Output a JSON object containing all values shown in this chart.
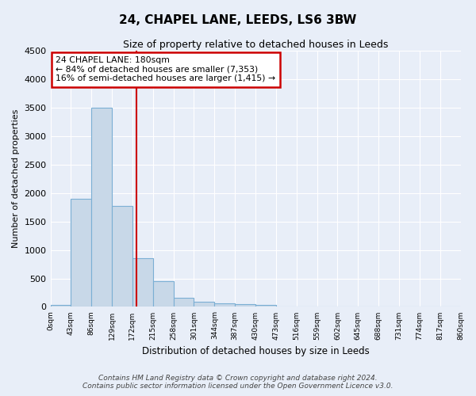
{
  "title": "24, CHAPEL LANE, LEEDS, LS6 3BW",
  "subtitle": "Size of property relative to detached houses in Leeds",
  "xlabel": "Distribution of detached houses by size in Leeds",
  "ylabel": "Number of detached properties",
  "footer_line1": "Contains HM Land Registry data © Crown copyright and database right 2024.",
  "footer_line2": "Contains public sector information licensed under the Open Government Licence v3.0.",
  "property_size": 180,
  "annotation_title": "24 CHAPEL LANE: 180sqm",
  "annotation_line1": "← 84% of detached houses are smaller (7,353)",
  "annotation_line2": "16% of semi-detached houses are larger (1,415) →",
  "bin_labels": [
    "0sqm",
    "43sqm",
    "86sqm",
    "129sqm",
    "172sqm",
    "215sqm",
    "258sqm",
    "301sqm",
    "344sqm",
    "387sqm",
    "430sqm",
    "473sqm",
    "516sqm",
    "559sqm",
    "602sqm",
    "645sqm",
    "688sqm",
    "731sqm",
    "774sqm",
    "817sqm",
    "860sqm"
  ],
  "bar_values": [
    30,
    1900,
    3500,
    1780,
    850,
    450,
    160,
    95,
    55,
    45,
    30,
    0,
    0,
    0,
    0,
    0,
    0,
    0,
    0,
    0
  ],
  "bar_color": "#c8d8e8",
  "bar_edge_color": "#7bafd4",
  "red_line_color": "#cc0000",
  "annotation_box_color": "#cc0000",
  "background_color": "#e8eef8",
  "ylim": [
    0,
    4500
  ],
  "bin_width": 43
}
